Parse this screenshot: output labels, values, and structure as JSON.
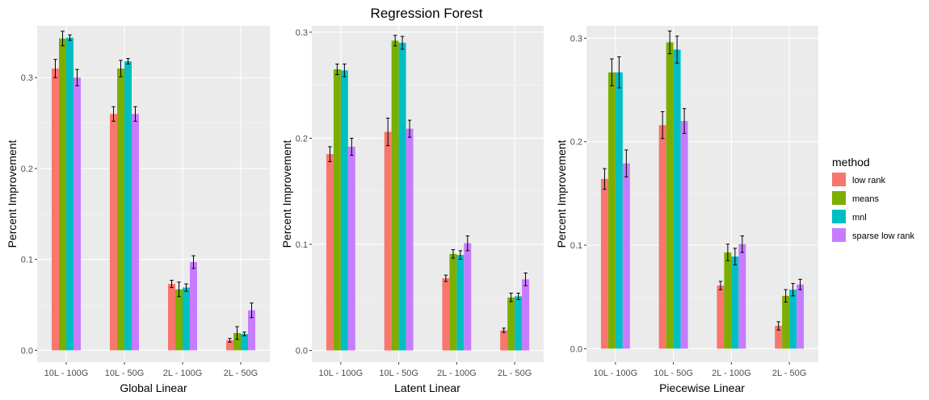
{
  "chart_data": {
    "type": "bar",
    "title": "Regression Forest",
    "legend": {
      "title": "method",
      "placement": "right",
      "entries": [
        {
          "name": "low rank",
          "color": "#F8766D"
        },
        {
          "name": "means",
          "color": "#7CAE00"
        },
        {
          "name": "mnl",
          "color": "#00BFC4"
        },
        {
          "name": "sparse low rank",
          "color": "#C77CFF"
        }
      ]
    },
    "panels": [
      {
        "xlabel": "Global Linear",
        "ylabel": "Percent Improvement",
        "categories": [
          "10L - 100G",
          "10L - 50G",
          "2L - 100G",
          "2L - 50G"
        ],
        "ylim": [
          -0.013,
          0.357
        ],
        "yticks": [
          0.0,
          0.1,
          0.2,
          0.3
        ],
        "ytick_labels": [
          "0.0",
          "0.1",
          "0.2",
          "0.3"
        ],
        "series": [
          {
            "name": "low rank",
            "values": [
              0.31,
              0.26,
              0.073,
              0.011
            ],
            "errors": [
              0.01,
              0.008,
              0.004,
              0.002
            ]
          },
          {
            "name": "means",
            "values": [
              0.343,
              0.31,
              0.067,
              0.019
            ],
            "errors": [
              0.008,
              0.009,
              0.008,
              0.007
            ]
          },
          {
            "name": "mnl",
            "values": [
              0.344,
              0.318,
              0.069,
              0.018
            ],
            "errors": [
              0.003,
              0.003,
              0.004,
              0.002
            ]
          },
          {
            "name": "sparse low rank",
            "values": [
              0.3,
              0.26,
              0.097,
              0.044
            ],
            "errors": [
              0.009,
              0.008,
              0.007,
              0.008
            ]
          }
        ]
      },
      {
        "xlabel": "Latent Linear",
        "ylabel": "Percent Improvement",
        "categories": [
          "10L - 100G",
          "10L - 50G",
          "2L - 100G",
          "2L - 50G"
        ],
        "ylim": [
          -0.011,
          0.306
        ],
        "yticks": [
          0.0,
          0.1,
          0.2,
          0.3
        ],
        "ytick_labels": [
          "0.0",
          "0.1",
          "0.2",
          "0.3"
        ],
        "series": [
          {
            "name": "low rank",
            "values": [
              0.185,
              0.206,
              0.068,
              0.019
            ],
            "errors": [
              0.007,
              0.013,
              0.003,
              0.002
            ]
          },
          {
            "name": "means",
            "values": [
              0.265,
              0.292,
              0.091,
              0.05
            ],
            "errors": [
              0.005,
              0.005,
              0.004,
              0.004
            ]
          },
          {
            "name": "mnl",
            "values": [
              0.264,
              0.29,
              0.09,
              0.051
            ],
            "errors": [
              0.006,
              0.006,
              0.004,
              0.003
            ]
          },
          {
            "name": "sparse low rank",
            "values": [
              0.192,
              0.209,
              0.101,
              0.067
            ],
            "errors": [
              0.008,
              0.008,
              0.007,
              0.006
            ]
          }
        ]
      },
      {
        "xlabel": "Piecewise Linear",
        "ylabel": "Percent Improvement",
        "categories": [
          "10L - 100G",
          "10L - 50G",
          "2L - 100G",
          "2L - 50G"
        ],
        "ylim": [
          -0.013,
          0.312
        ],
        "yticks": [
          0.0,
          0.1,
          0.2,
          0.3
        ],
        "ytick_labels": [
          "0.0",
          "0.1",
          "0.2",
          "0.3"
        ],
        "series": [
          {
            "name": "low rank",
            "values": [
              0.164,
              0.216,
              0.061,
              0.022
            ],
            "errors": [
              0.01,
              0.013,
              0.004,
              0.004
            ]
          },
          {
            "name": "means",
            "values": [
              0.267,
              0.296,
              0.093,
              0.051
            ],
            "errors": [
              0.013,
              0.011,
              0.008,
              0.006
            ]
          },
          {
            "name": "mnl",
            "values": [
              0.267,
              0.289,
              0.089,
              0.057
            ],
            "errors": [
              0.015,
              0.013,
              0.008,
              0.006
            ]
          },
          {
            "name": "sparse low rank",
            "values": [
              0.179,
              0.22,
              0.101,
              0.062
            ],
            "errors": [
              0.013,
              0.012,
              0.008,
              0.005
            ]
          }
        ]
      }
    ]
  }
}
